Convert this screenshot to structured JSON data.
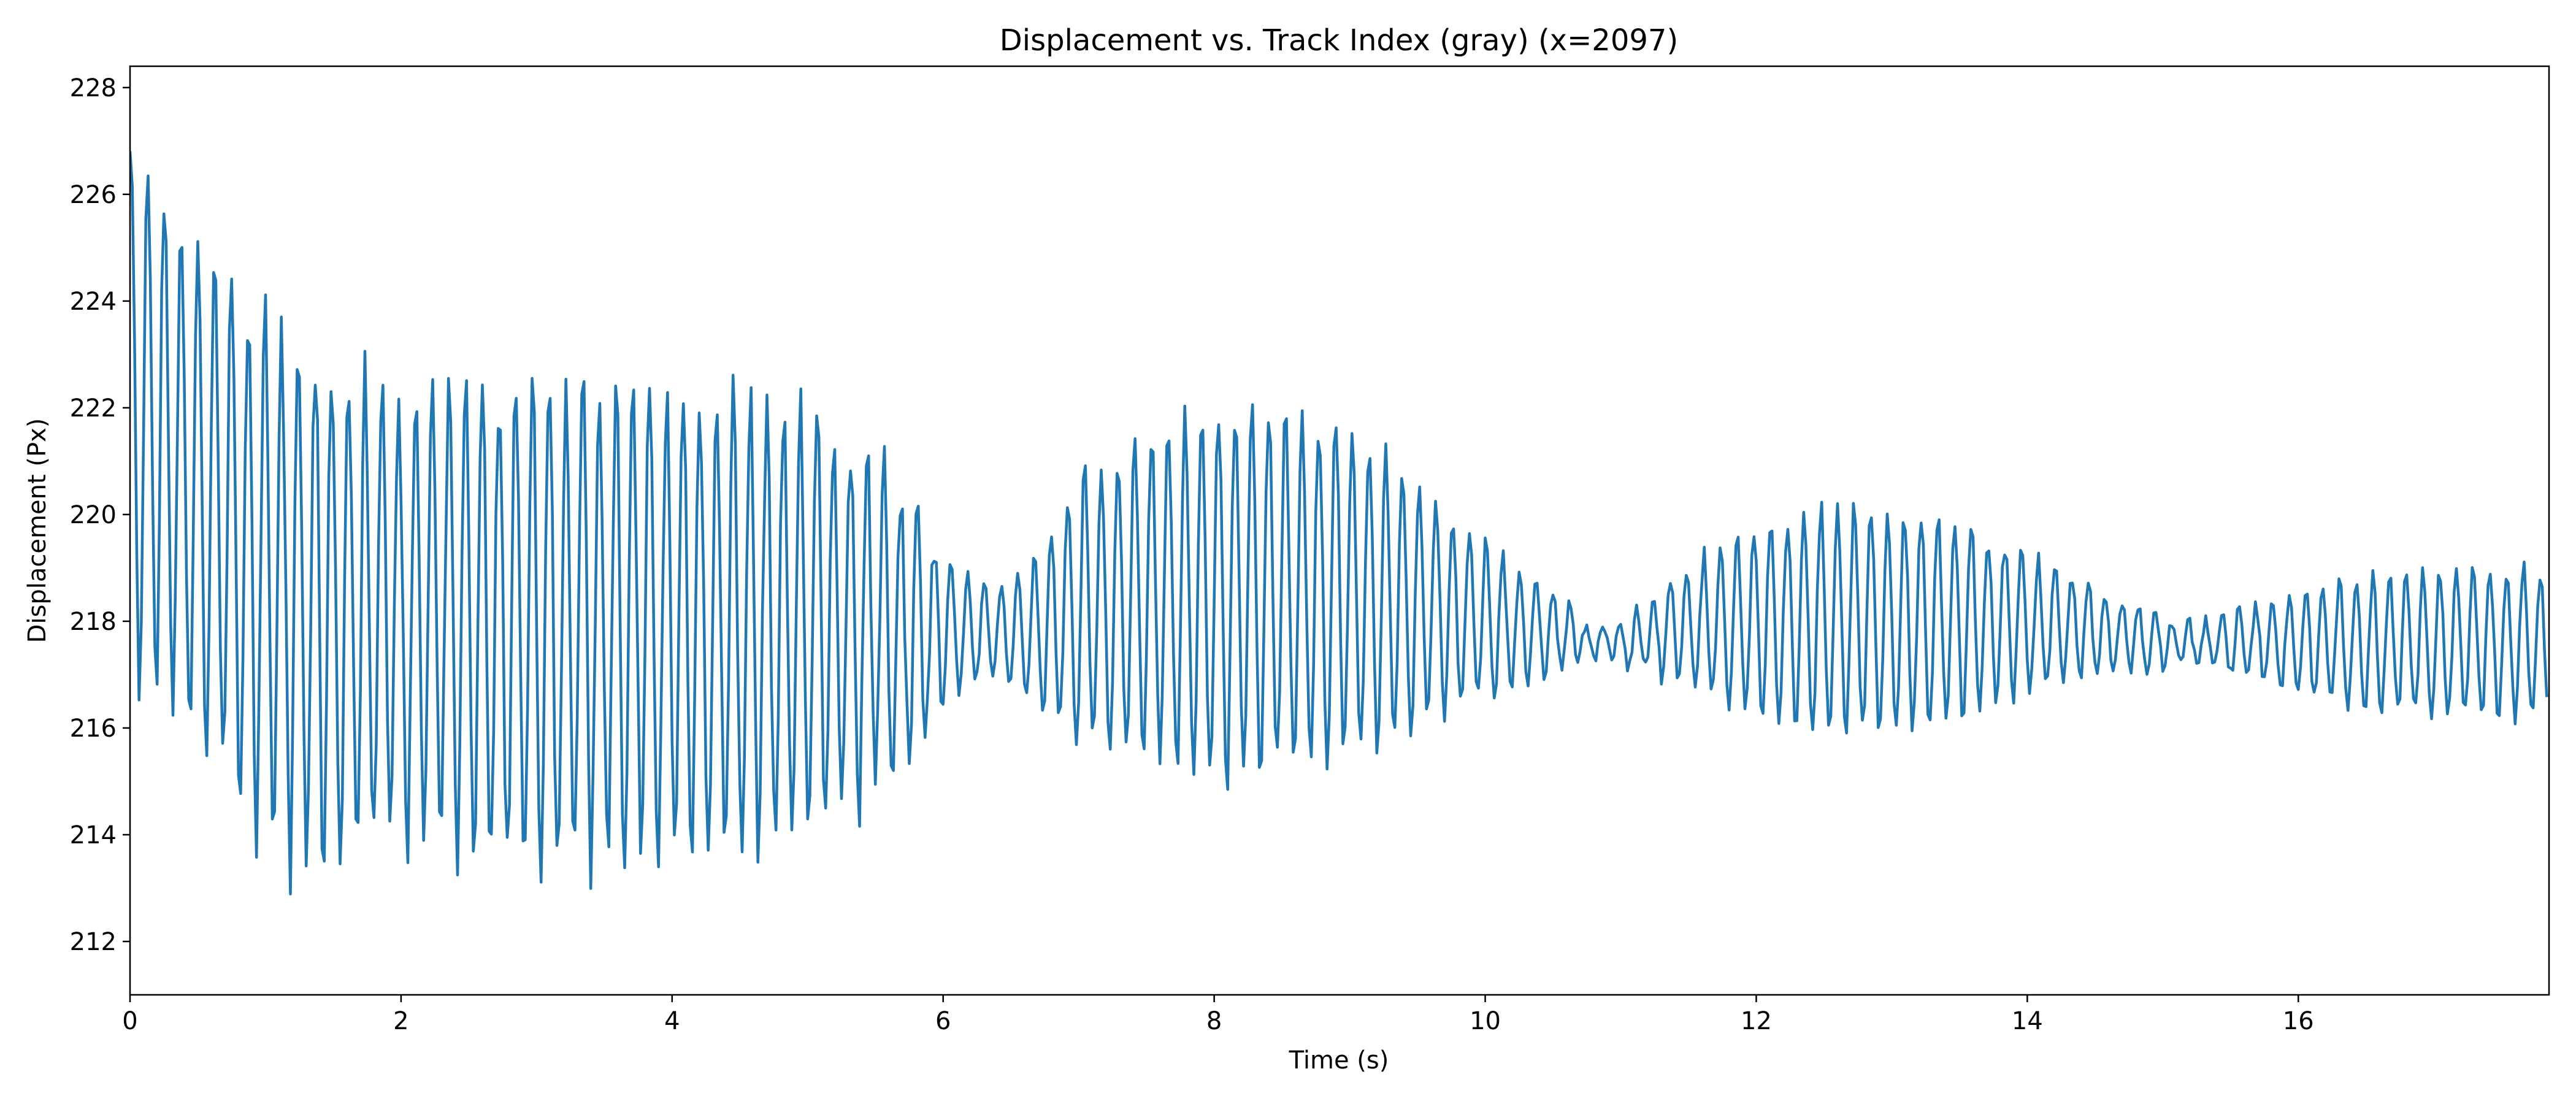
{
  "chart_data": {
    "type": "line",
    "title": "Displacement vs. Track Index (gray) (x=2097)",
    "xlabel": "Time (s)",
    "ylabel": "Displacement (Px)",
    "xlim": [
      0,
      17.85
    ],
    "ylim": [
      211.0,
      228.4
    ],
    "xticks": [
      0,
      2,
      4,
      6,
      8,
      10,
      12,
      14,
      16
    ],
    "yticks": [
      212,
      214,
      216,
      218,
      220,
      222,
      224,
      226,
      228
    ],
    "grid": false,
    "line_color": "#1f77b4",
    "sample_interval_s": 0.0166667,
    "oscillation_frequency_hz": 8.1,
    "series": [
      {
        "envelope_points": [
          [
            0.0,
            222.0,
            5.8
          ],
          [
            0.3,
            221.2,
            5.0
          ],
          [
            0.8,
            219.5,
            5.5
          ],
          [
            1.2,
            218.3,
            5.2
          ],
          [
            2.0,
            218.2,
            4.5
          ],
          [
            3.0,
            218.0,
            5.0
          ],
          [
            4.0,
            218.0,
            4.8
          ],
          [
            5.0,
            218.0,
            4.3
          ],
          [
            5.5,
            218.0,
            3.5
          ],
          [
            6.0,
            217.8,
            1.5
          ],
          [
            6.3,
            217.8,
            0.9
          ],
          [
            6.6,
            217.8,
            1.2
          ],
          [
            7.0,
            218.2,
            2.8
          ],
          [
            7.5,
            218.5,
            3.3
          ],
          [
            8.0,
            218.5,
            3.8
          ],
          [
            8.5,
            218.6,
            3.7
          ],
          [
            9.0,
            218.6,
            3.4
          ],
          [
            9.5,
            218.3,
            2.5
          ],
          [
            10.0,
            218.0,
            1.6
          ],
          [
            10.5,
            217.8,
            0.8
          ],
          [
            10.8,
            217.6,
            0.3
          ],
          [
            11.0,
            217.6,
            0.4
          ],
          [
            11.5,
            217.9,
            1.2
          ],
          [
            12.0,
            218.0,
            2.0
          ],
          [
            12.5,
            218.0,
            2.3
          ],
          [
            13.0,
            218.0,
            2.3
          ],
          [
            13.5,
            218.0,
            2.0
          ],
          [
            14.0,
            218.0,
            1.4
          ],
          [
            14.5,
            217.8,
            0.9
          ],
          [
            15.0,
            217.6,
            0.5
          ],
          [
            15.3,
            217.6,
            0.4
          ],
          [
            15.7,
            217.6,
            0.8
          ],
          [
            16.3,
            217.6,
            1.3
          ],
          [
            17.0,
            217.6,
            1.5
          ],
          [
            17.85,
            217.6,
            1.5
          ]
        ]
      }
    ]
  }
}
